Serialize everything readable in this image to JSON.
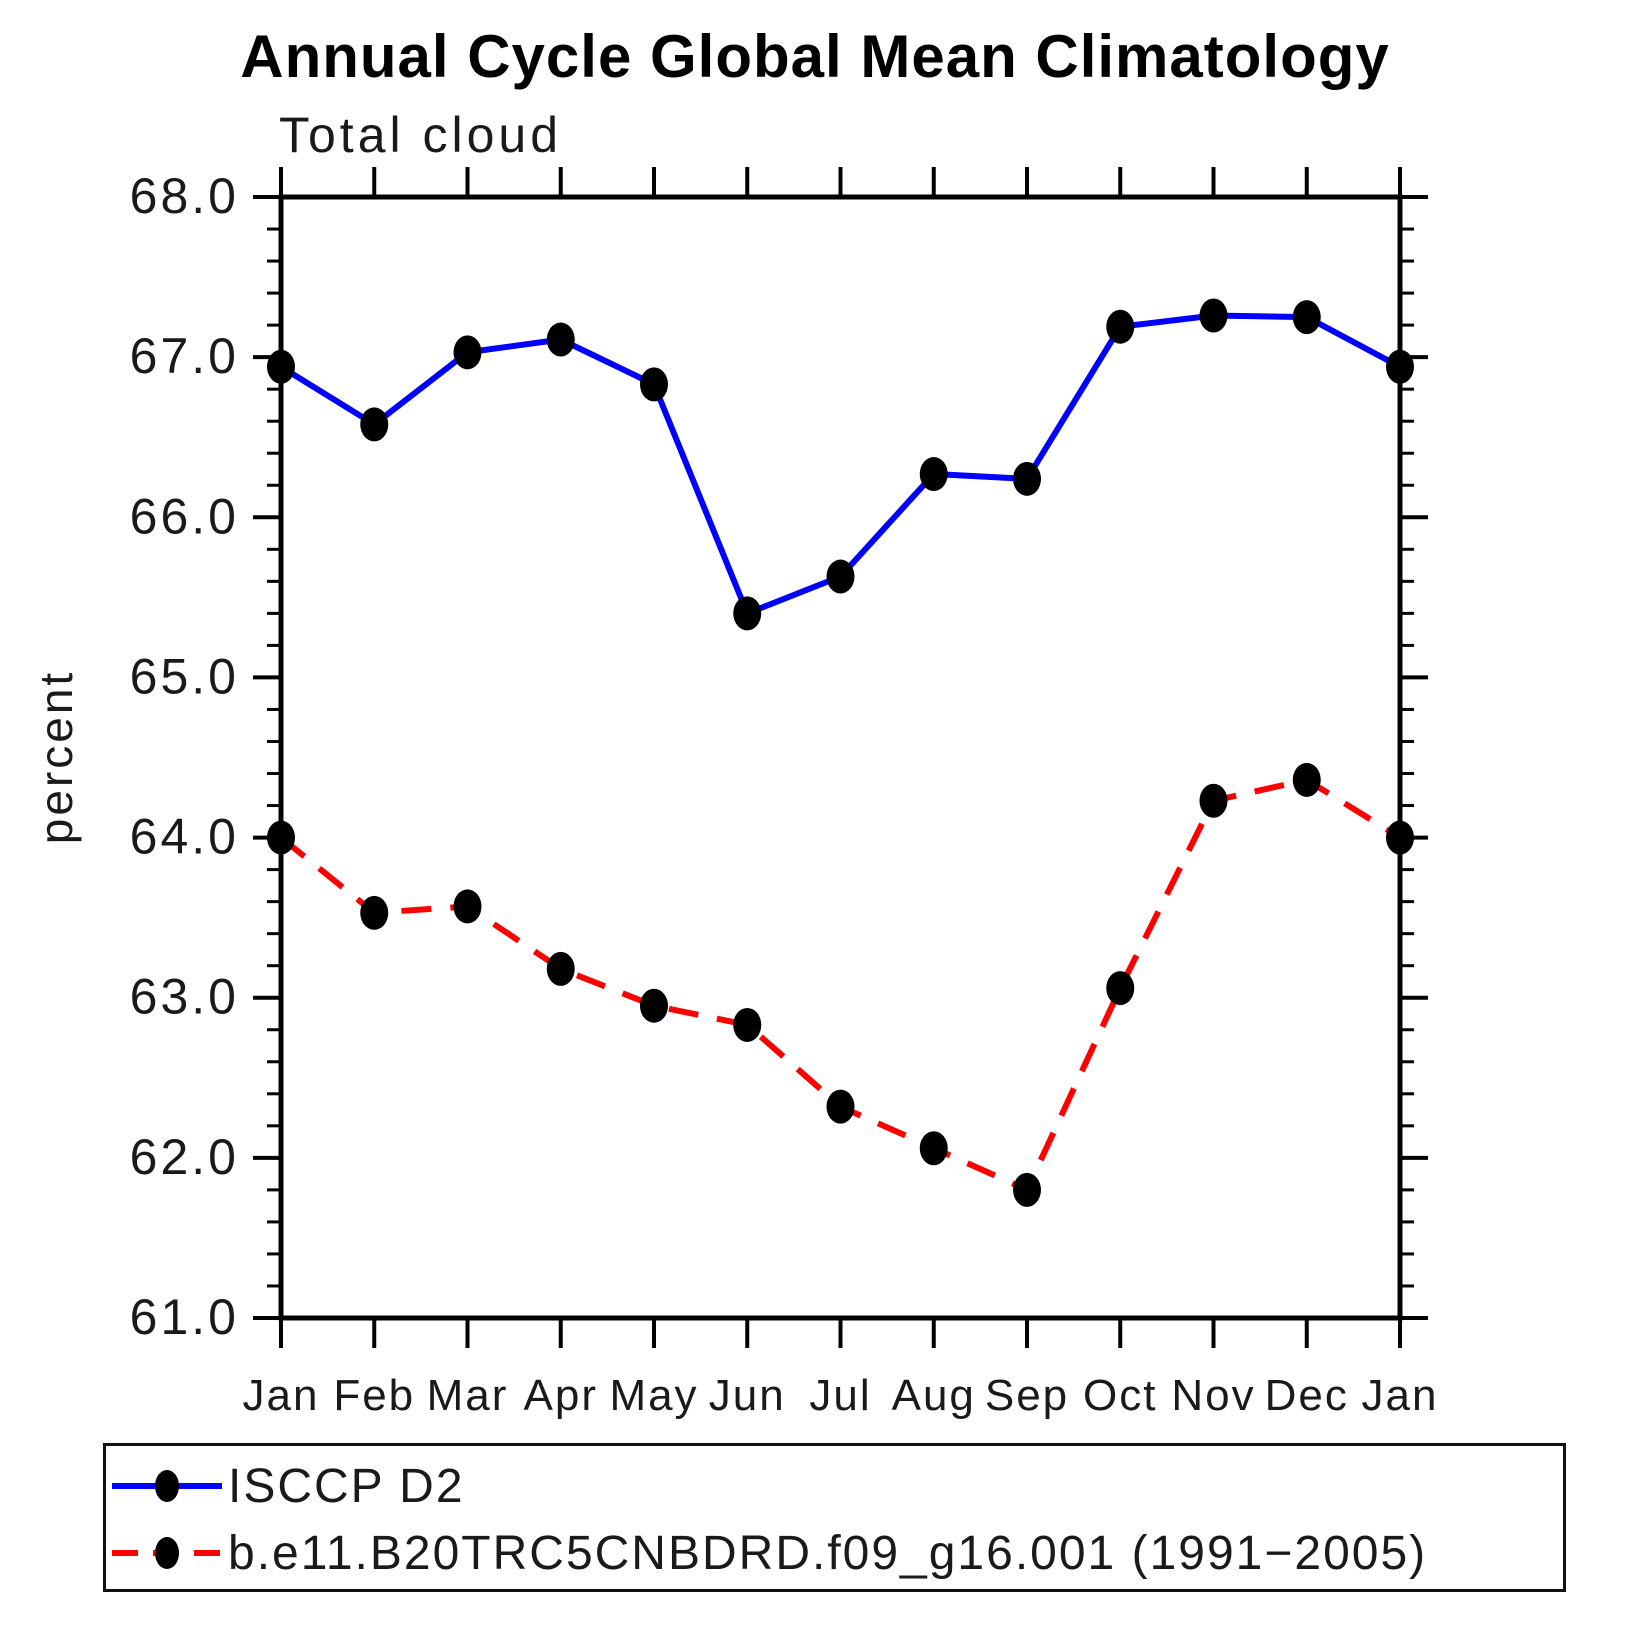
{
  "chart_data": {
    "type": "line",
    "title": "Annual Cycle Global Mean Climatology",
    "subtitle": "Total cloud",
    "ylabel": "percent",
    "ylim": [
      61.0,
      68.0
    ],
    "ytick_step": 1.0,
    "yminor_step": 0.2,
    "ytick_labels": [
      "61.0",
      "62.0",
      "63.0",
      "64.0",
      "65.0",
      "66.0",
      "67.0",
      "68.0"
    ],
    "categories": [
      "Jan",
      "Feb",
      "Mar",
      "Apr",
      "May",
      "Jun",
      "Jul",
      "Aug",
      "Sep",
      "Oct",
      "Nov",
      "Dec",
      "Jan"
    ],
    "grid": "off",
    "legend_position": "bottom-left-box",
    "axis_color": "#000000",
    "marker_color": "#000000",
    "series": [
      {
        "name": "ISCCP D2",
        "color": "#0000ff",
        "line_style": "solid",
        "marker": "filled-ellipse",
        "values": [
          66.94,
          66.58,
          67.03,
          67.11,
          66.83,
          65.4,
          65.63,
          66.27,
          66.24,
          67.19,
          67.26,
          67.25,
          66.94
        ]
      },
      {
        "name": "b.e11.B20TRC5CNBDRD.f09_g16.001 (1991−2005)",
        "color": "#ff0000",
        "line_style": "dashed",
        "marker": "filled-ellipse",
        "values": [
          64.0,
          63.53,
          63.57,
          63.18,
          62.95,
          62.83,
          62.32,
          62.06,
          61.8,
          63.06,
          64.23,
          64.36,
          64.0
        ]
      }
    ]
  }
}
